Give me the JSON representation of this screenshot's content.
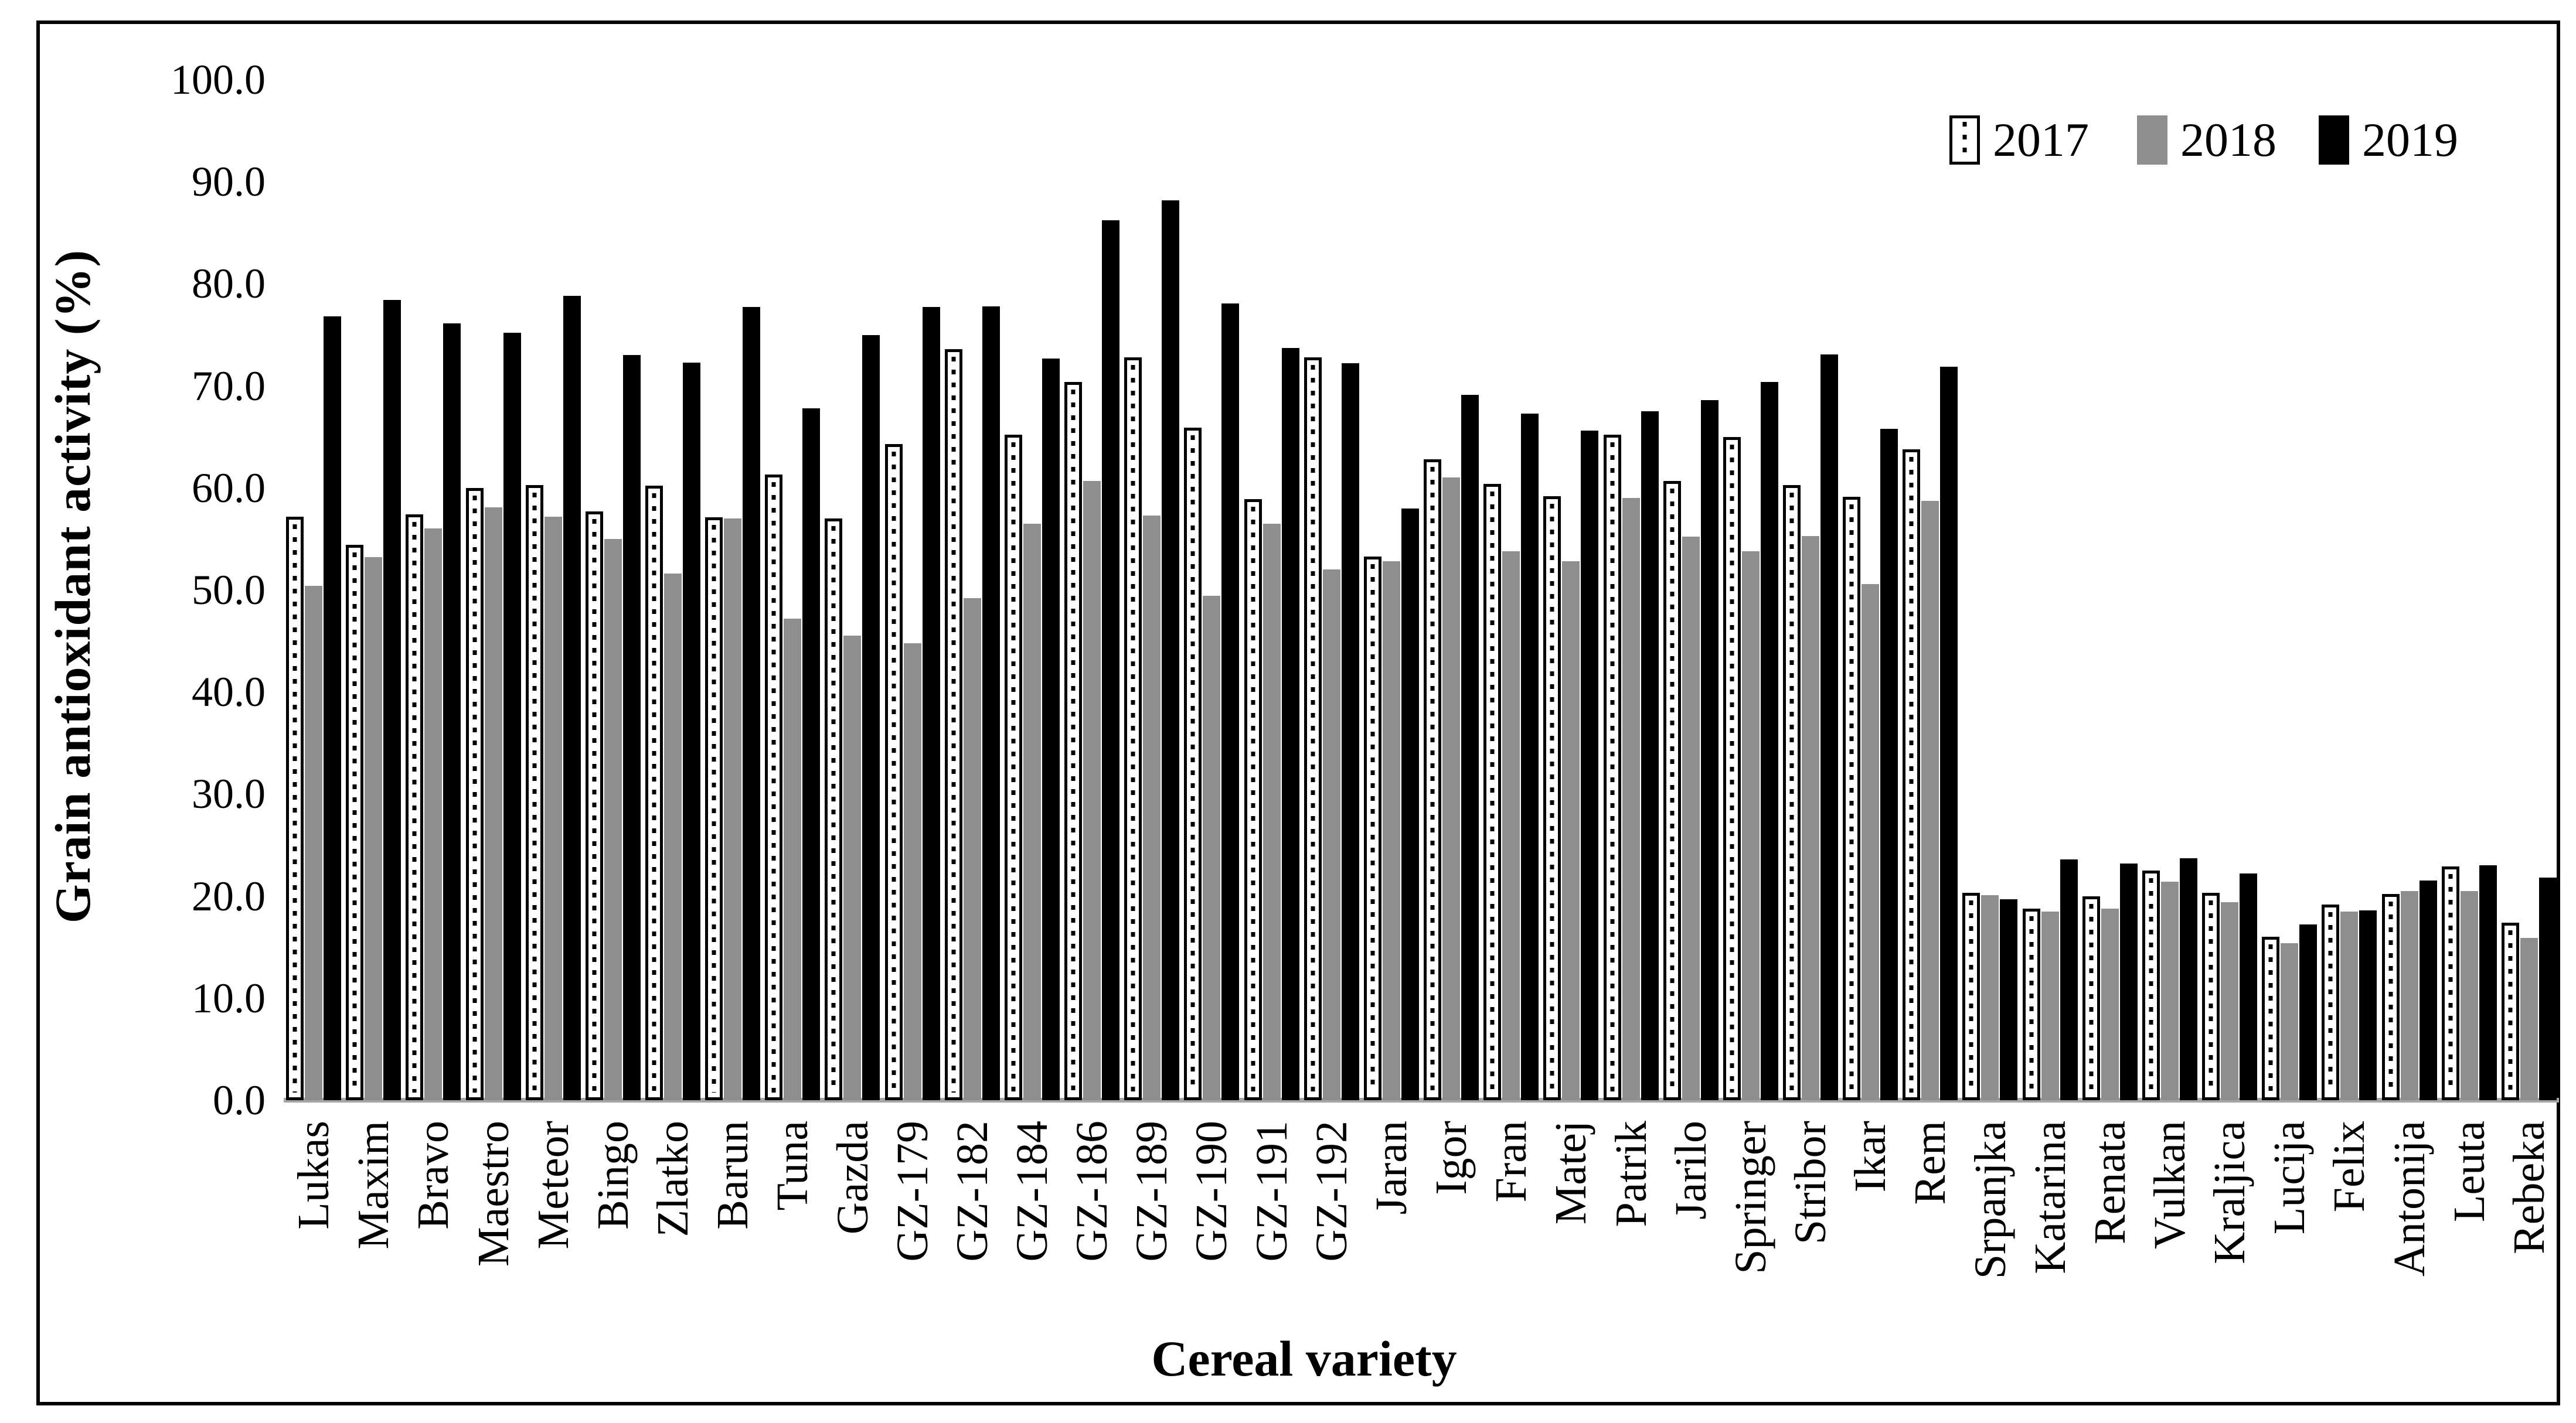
{
  "figure": {
    "y_axis_title": "Grain antioxidant activity (%)",
    "x_axis_title": "Cereal variety"
  },
  "y_ticks": [
    "100.0",
    "90.0",
    "80.0",
    "70.0",
    "60.0",
    "50.0",
    "40.0",
    "30.0",
    "20.0",
    "10.0",
    "0.0"
  ],
  "legend": {
    "items": [
      "2017",
      "2018",
      "2019"
    ]
  },
  "chart_data": {
    "type": "bar",
    "title": "",
    "xlabel": "Cereal variety",
    "ylabel": "Grain antioxidant activity (%)",
    "ylim": [
      0,
      100
    ],
    "y_tick_step": 10,
    "grid": false,
    "legend_position": "top-right",
    "categories": [
      "Lukas",
      "Maxim",
      "Bravo",
      "Maestro",
      "Meteor",
      "Bingo",
      "Zlatko",
      "Barun",
      "Tuna",
      "Gazda",
      "GZ-179",
      "GZ-182",
      "GZ-184",
      "GZ-186",
      "GZ-189",
      "GZ-190",
      "GZ-191",
      "GZ-192",
      "Jaran",
      "Igor",
      "Fran",
      "Matej",
      "Patrik",
      "Jarilo",
      "Springer",
      "Stribor",
      "Ikar",
      "Rem",
      "Srpanjka",
      "Katarina",
      "Renata",
      "Vulkan",
      "Kraljica",
      "Lucija",
      "Felix",
      "Antonija",
      "Leuta",
      "Rebeka"
    ],
    "series": [
      {
        "name": "2017",
        "style": "white-dotted-black-border",
        "values": [
          57.2,
          54.4,
          57.4,
          60.0,
          60.3,
          57.7,
          60.2,
          57.1,
          61.3,
          57.0,
          64.3,
          73.6,
          65.2,
          70.4,
          72.8,
          65.9,
          58.9,
          72.8,
          53.3,
          62.8,
          60.4,
          59.2,
          65.2,
          60.7,
          65.0,
          60.3,
          59.1,
          63.8,
          20.3,
          18.8,
          20.0,
          22.5,
          20.3,
          16.0,
          19.2,
          20.2,
          22.9,
          17.4
        ]
      },
      {
        "name": "2018",
        "style": "solid-gray",
        "color": "#8e8e8e",
        "values": [
          50.4,
          53.2,
          56.0,
          58.1,
          57.2,
          55.0,
          51.6,
          57.0,
          47.2,
          45.5,
          44.8,
          49.2,
          56.5,
          60.7,
          57.3,
          49.4,
          56.5,
          52.0,
          52.8,
          61.0,
          53.8,
          52.8,
          59.0,
          55.2,
          53.8,
          55.3,
          50.6,
          58.7,
          20.1,
          18.5,
          18.8,
          21.4,
          19.4,
          15.4,
          18.5,
          20.5,
          20.5,
          15.9
        ]
      },
      {
        "name": "2019",
        "style": "solid-black",
        "color": "#000000",
        "values": [
          76.8,
          78.4,
          76.1,
          75.2,
          78.8,
          73.0,
          72.3,
          77.7,
          67.8,
          75.0,
          77.7,
          77.8,
          72.7,
          86.2,
          88.2,
          78.1,
          73.7,
          72.2,
          58.0,
          69.1,
          67.3,
          65.6,
          67.5,
          68.6,
          70.4,
          73.1,
          65.8,
          71.9,
          19.7,
          23.6,
          23.2,
          23.7,
          22.2,
          17.2,
          18.6,
          21.5,
          23.0,
          21.8
        ]
      }
    ]
  }
}
